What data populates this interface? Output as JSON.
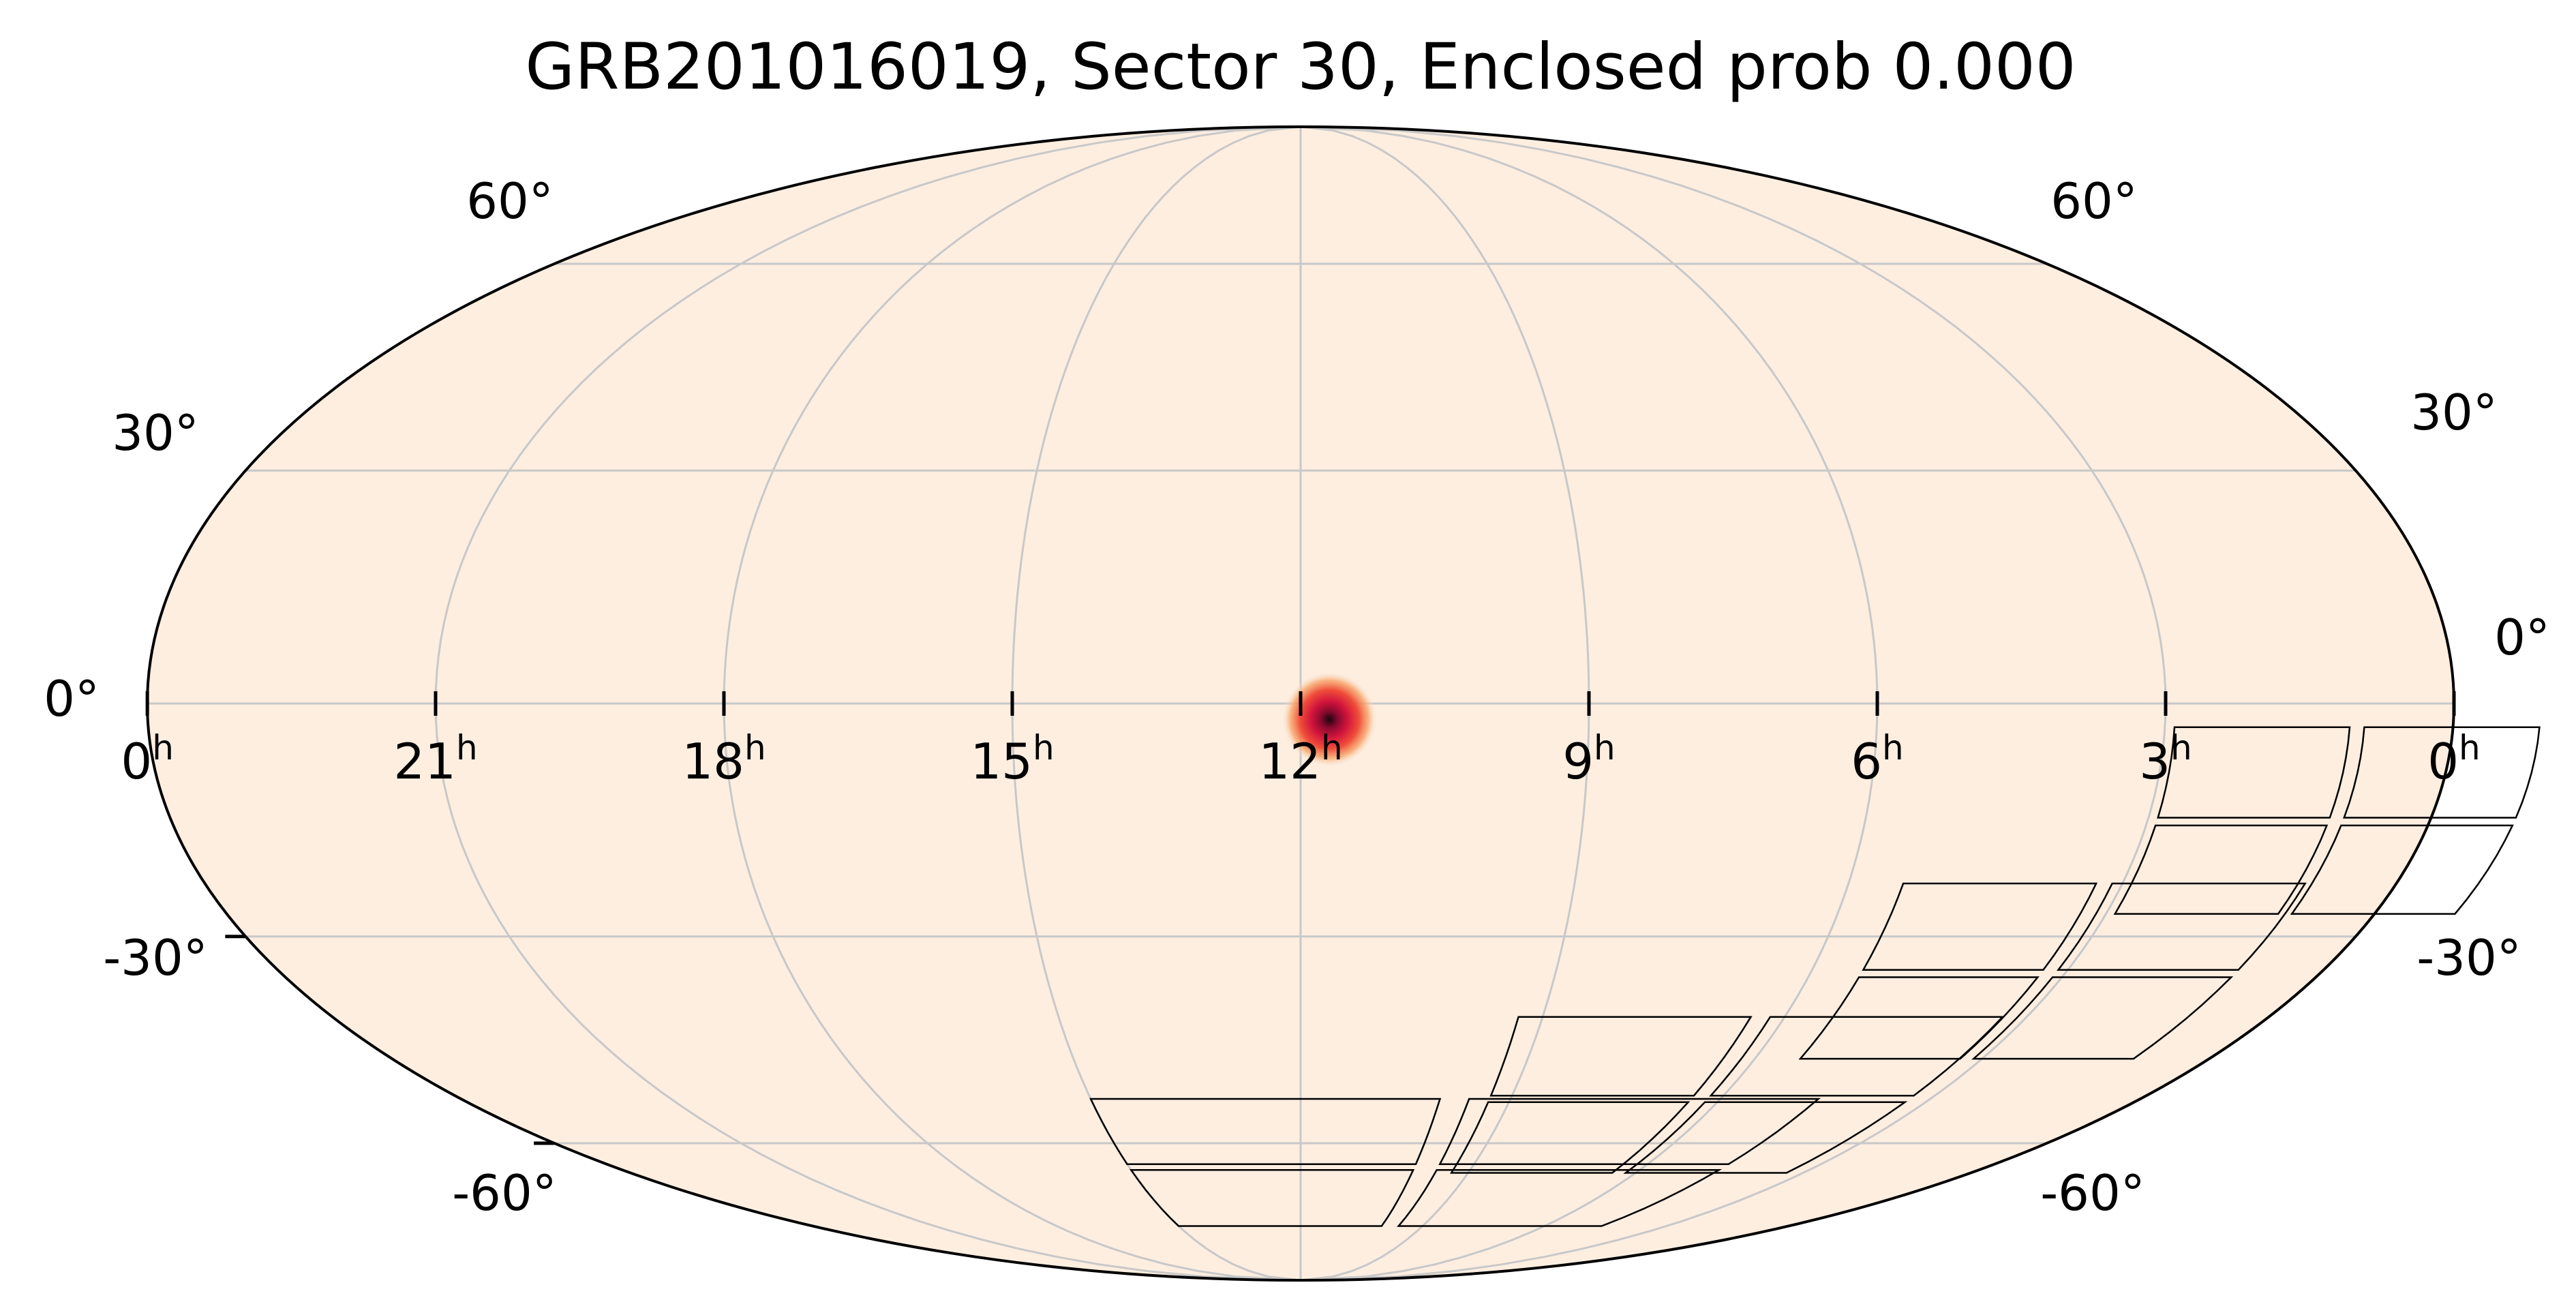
{
  "title": "GRB201016019, Sector 30, Enclosed prob 0.000",
  "projection": "Mollweide",
  "colors": {
    "background": "#fdeee0",
    "graticule": "#c8c8c8",
    "outline": "#000000",
    "hotspot_core": "#1a0610",
    "hotspot_mid": "#d2143c",
    "hotspot_outer": "#f38a55"
  },
  "ra_labels": [
    {
      "text": "0",
      "ra_h": 24
    },
    {
      "text": "21",
      "ra_h": 21
    },
    {
      "text": "18",
      "ra_h": 18
    },
    {
      "text": "15",
      "ra_h": 15
    },
    {
      "text": "12",
      "ra_h": 12
    },
    {
      "text": "9",
      "ra_h": 9
    },
    {
      "text": "6",
      "ra_h": 6
    },
    {
      "text": "3",
      "ra_h": 3
    },
    {
      "text": "0",
      "ra_h": 0
    }
  ],
  "ra_unit": "h",
  "dec_labels_left": [
    "60°",
    "30°",
    "0°",
    "-30°",
    "-60°"
  ],
  "dec_labels_right": [
    "60°",
    "30°",
    "0°",
    "-30°",
    "-60°"
  ],
  "dec_values": [
    60,
    30,
    0,
    -30,
    -60
  ],
  "hotspot": {
    "ra_h": 11.7,
    "dec": -2
  },
  "sector": {
    "name": "Sector 30",
    "cameras": 4,
    "ccds_per_camera": 4
  }
}
